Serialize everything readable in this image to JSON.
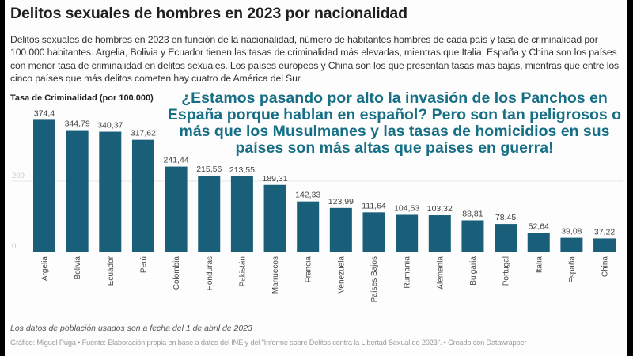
{
  "header": {
    "title": "Delitos sexuales de hombres en 2023 por nacionalidad",
    "description": "Delitos sexuales de hombres en 2023 en función de la nacionalidad, número de habitantes hombres de cada país y tasa de criminalidad por 100.000 habitantes. Argelia, Bolivia y Ecuador tienen las tasas de criminalidad más elevadas, mientras que Italia, España y China son los países con menor tasa de criminalidad en delitos sexuales. Los países europeos y China son los que presentan tasas más bajas, mientras que entre los cinco países que más delitos cometen hay cuatro de América del Sur."
  },
  "overlay_text": "¿Estamos pasando por alto la invasión de los Panchos en España porque hablan en español? Pero son tan peligrosos o más que los Musulmanes y las tasas de homicidios en sus países son más altas que países en guerra!",
  "colors": {
    "bar": "#1a5f7a",
    "overlay_text": "#176f86"
  },
  "chart_data": {
    "type": "bar",
    "title": "Delitos sexuales de hombres en 2023 por nacionalidad",
    "xlabel": "",
    "ylabel": "Tasa de Criminalidad (por 100.000)",
    "ylim": [
      0,
      400
    ],
    "yticks": [
      0,
      200
    ],
    "grid": true,
    "categories": [
      "Argelia",
      "Bolivia",
      "Ecuador",
      "Perú",
      "Colombia",
      "Honduras",
      "Pakistán",
      "Marruecos",
      "Francia",
      "Venezuela",
      "Países Bajos",
      "Rumanía",
      "Alemania",
      "Bulgaria",
      "Portugal",
      "Italia",
      "España",
      "China"
    ],
    "values": [
      374.4,
      344.79,
      340.37,
      317.62,
      241.44,
      215.56,
      213.55,
      189.31,
      142.33,
      123.99,
      111.64,
      104.53,
      103.32,
      88.81,
      78.45,
      52.64,
      39.08,
      37.22
    ],
    "value_labels": [
      "374,4",
      "344,79",
      "340,37",
      "317,62",
      "241,44",
      "215,56",
      "213,55",
      "189,31",
      "142,33",
      "123,99",
      "111,64",
      "104,53",
      "103,32",
      "88,81",
      "78,45",
      "52,64",
      "39,08",
      "37,22"
    ]
  },
  "footer": {
    "note": "Los datos de población usados son a fecha del 1 de abril de 2023",
    "credits": "Gráfico: Miguel Puga • Fuente: Elaboración propia en base a datos del INE y del \"Informe sobre Delitos contra la Libertad Sexual de 2023\". • Creado con Datawrapper"
  }
}
